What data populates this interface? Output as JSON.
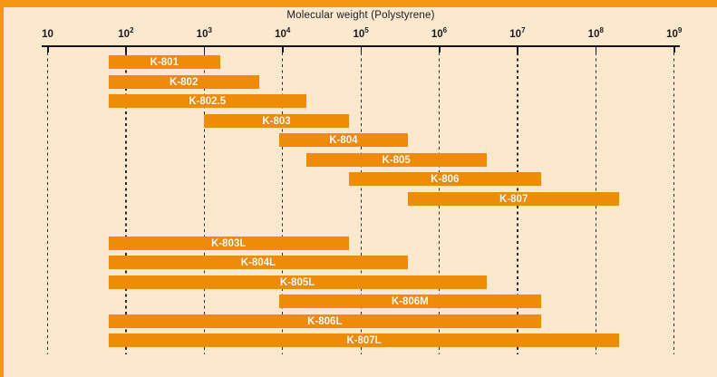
{
  "figure": {
    "title": "Molecular weight (Polystyrene)"
  },
  "colors": {
    "background": "#FBE8CE",
    "bar": "#EE8B07",
    "accent_strip": "#F2970F",
    "axis": "#171717",
    "grid": "#2A2A2A",
    "bar_label_text": "#FFFFFF",
    "tick_text": "#1A1A1A"
  },
  "chart_data": {
    "type": "bar",
    "orientation": "horizontal",
    "title": "Molecular weight (Polystyrene)",
    "x_scale": "log",
    "x_range": [
      10,
      1000000000
    ],
    "grid": "dashed-vertical",
    "legend": "none",
    "x_ticks": [
      {
        "base": "10",
        "exp": "",
        "value": 10
      },
      {
        "base": "10",
        "exp": "2",
        "value": 100
      },
      {
        "base": "10",
        "exp": "3",
        "value": 1000
      },
      {
        "base": "10",
        "exp": "4",
        "value": 10000
      },
      {
        "base": "10",
        "exp": "5",
        "value": 100000
      },
      {
        "base": "10",
        "exp": "6",
        "value": 1000000
      },
      {
        "base": "10",
        "exp": "7",
        "value": 10000000
      },
      {
        "base": "10",
        "exp": "8",
        "value": 100000000
      },
      {
        "base": "10",
        "exp": "9",
        "value": 1000000000
      }
    ],
    "series": [
      {
        "name": "K-801",
        "group": "upper",
        "mw_min": 60,
        "mw_max": 1600
      },
      {
        "name": "K-802",
        "group": "upper",
        "mw_min": 60,
        "mw_max": 5000
      },
      {
        "name": "K-802.5",
        "group": "upper",
        "mw_min": 60,
        "mw_max": 20000
      },
      {
        "name": "K-803",
        "group": "upper",
        "mw_min": 1000,
        "mw_max": 70000
      },
      {
        "name": "K-804",
        "group": "upper",
        "mw_min": 9000,
        "mw_max": 400000
      },
      {
        "name": "K-805",
        "group": "upper",
        "mw_min": 20000,
        "mw_max": 4000000
      },
      {
        "name": "K-806",
        "group": "upper",
        "mw_min": 70000,
        "mw_max": 20000000
      },
      {
        "name": "K-807",
        "group": "upper",
        "mw_min": 400000,
        "mw_max": 200000000
      },
      {
        "name": "K-803L",
        "group": "lower",
        "mw_min": 60,
        "mw_max": 70000
      },
      {
        "name": "K-804L",
        "group": "lower",
        "mw_min": 60,
        "mw_max": 400000
      },
      {
        "name": "K-805L",
        "group": "lower",
        "mw_min": 60,
        "mw_max": 4000000
      },
      {
        "name": "K-806M",
        "group": "lower",
        "mw_min": 9000,
        "mw_max": 20000000
      },
      {
        "name": "K-806L",
        "group": "lower",
        "mw_min": 60,
        "mw_max": 20000000
      },
      {
        "name": "K-807L",
        "group": "lower",
        "mw_min": 60,
        "mw_max": 200000000
      }
    ]
  }
}
